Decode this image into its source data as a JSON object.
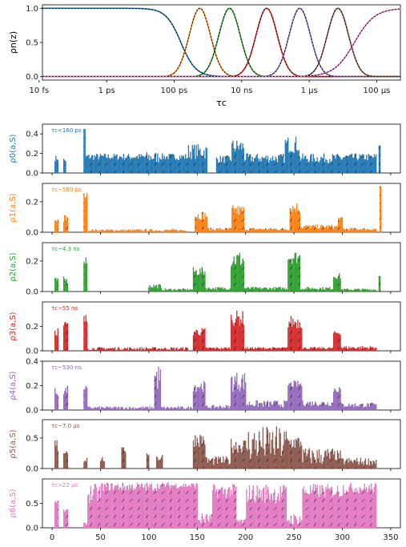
{
  "colors": [
    "#1f77b4",
    "#ff7f0e",
    "#2ca02c",
    "#d62728",
    "#9467bd",
    "#8c564b",
    "#e377c2"
  ],
  "chart_data": [
    {
      "type": "line",
      "ylabel": "ρn(z)",
      "xlabel": "τc",
      "x_scale": "log",
      "xlim_log10": [
        -13.9,
        -3.3
      ],
      "ylim": [
        -0.05,
        1.05
      ],
      "xticks": [
        {
          "log10": -14,
          "label": "10 fs"
        },
        {
          "log10": -12,
          "label": "1 ps"
        },
        {
          "log10": -10,
          "label": "100 ps"
        },
        {
          "log10": -8,
          "label": "10 ns"
        },
        {
          "log10": -6,
          "label": "1 μs"
        },
        {
          "log10": -4,
          "label": "100 μs"
        }
      ],
      "yticks": [
        "0.0",
        "0.5",
        "1.0"
      ],
      "series": [
        {
          "center_log10": -9.8,
          "kind": "falling"
        },
        {
          "center_log10": -9.24,
          "kind": "bump"
        },
        {
          "center_log10": -8.36,
          "kind": "bump"
        },
        {
          "center_log10": -7.26,
          "kind": "bump"
        },
        {
          "center_log10": -6.28,
          "kind": "bump"
        },
        {
          "center_log10": -5.15,
          "kind": "bump"
        },
        {
          "center_log10": -4.66,
          "kind": "rising"
        }
      ],
      "bump_width_log10": 0.72
    },
    {
      "type": "bar",
      "xlim": [
        -10,
        360
      ],
      "xticks": [
        0,
        50,
        100,
        150,
        200,
        250,
        300,
        350
      ],
      "panels": [
        {
          "ylabel": "ρ0(a,S)",
          "annotation": "τc<160 ps",
          "ylim": [
            0,
            0.5
          ],
          "yticks": [
            "0.0",
            "0.2",
            "0.4"
          ],
          "segments": [
            [
              3,
              6,
              0.12,
              0.18
            ],
            [
              12,
              14,
              0.1,
              0.16
            ],
            [
              33,
              34,
              0.45,
              0.45
            ],
            [
              35,
              95,
              0.13,
              0.2
            ],
            [
              96,
              110,
              0.1,
              0.22
            ],
            [
              111,
              140,
              0.13,
              0.2
            ],
            [
              141,
              160,
              0.14,
              0.3
            ],
            [
              170,
              185,
              0.1,
              0.18
            ],
            [
              186,
              198,
              0.18,
              0.35
            ],
            [
              199,
              240,
              0.1,
              0.2
            ],
            [
              241,
              255,
              0.2,
              0.38
            ],
            [
              256,
              300,
              0.1,
              0.2
            ],
            [
              301,
              335,
              0.12,
              0.2
            ],
            [
              338,
              339,
              0.28,
              0.28
            ]
          ]
        },
        {
          "ylabel": "ρ1(a,S)",
          "annotation": "τc~580 ps",
          "ylim": [
            0,
            0.32
          ],
          "yticks": [
            "0.0",
            "0.2"
          ],
          "segments": [
            [
              3,
              6,
              0.06,
              0.1
            ],
            [
              12,
              16,
              0.05,
              0.12
            ],
            [
              33,
              36,
              0.22,
              0.26
            ],
            [
              37,
              140,
              0.005,
              0.02
            ],
            [
              148,
              160,
              0.08,
              0.14
            ],
            [
              161,
              185,
              0.01,
              0.03
            ],
            [
              186,
              198,
              0.1,
              0.18
            ],
            [
              199,
              245,
              0.01,
              0.03
            ],
            [
              246,
              256,
              0.12,
              0.2
            ],
            [
              257,
              295,
              0.02,
              0.05
            ],
            [
              296,
              300,
              0.08,
              0.1
            ],
            [
              301,
              335,
              0.01,
              0.03
            ],
            [
              339,
              340,
              0.3,
              0.3
            ]
          ]
        },
        {
          "ylabel": "ρ2(a,S)",
          "annotation": "τc~4.3 ns",
          "ylim": [
            0,
            0.32
          ],
          "yticks": [
            "0.0",
            "0.2"
          ],
          "segments": [
            [
              3,
              6,
              0.06,
              0.09
            ],
            [
              12,
              16,
              0.05,
              0.1
            ],
            [
              33,
              36,
              0.18,
              0.23
            ],
            [
              100,
              112,
              0.02,
              0.05
            ],
            [
              113,
              145,
              0.005,
              0.02
            ],
            [
              146,
              158,
              0.1,
              0.16
            ],
            [
              159,
              184,
              0.01,
              0.03
            ],
            [
              185,
              198,
              0.15,
              0.27
            ],
            [
              199,
              243,
              0.01,
              0.03
            ],
            [
              244,
              256,
              0.18,
              0.27
            ],
            [
              257,
              290,
              0.01,
              0.03
            ],
            [
              291,
              298,
              0.08,
              0.12
            ],
            [
              299,
              335,
              0.005,
              0.02
            ],
            [
              338,
              339,
              0.1,
              0.1
            ]
          ]
        },
        {
          "ylabel": "ρ3(a,S)",
          "annotation": "τc~55 ns",
          "ylim": [
            0,
            0.4
          ],
          "yticks": [
            "0.0",
            "0.2"
          ],
          "segments": [
            [
              3,
              6,
              0.12,
              0.2
            ],
            [
              12,
              16,
              0.15,
              0.25
            ],
            [
              33,
              36,
              0.2,
              0.3
            ],
            [
              37,
              140,
              0.005,
              0.03
            ],
            [
              146,
              158,
              0.12,
              0.19
            ],
            [
              159,
              184,
              0.01,
              0.03
            ],
            [
              185,
              198,
              0.2,
              0.33
            ],
            [
              199,
              243,
              0.01,
              0.03
            ],
            [
              244,
              258,
              0.18,
              0.29
            ],
            [
              259,
              290,
              0.01,
              0.03
            ],
            [
              291,
              298,
              0.13,
              0.16
            ],
            [
              299,
              335,
              0.01,
              0.04
            ]
          ]
        },
        {
          "ylabel": "ρ4(a,S)",
          "annotation": "τc~530 ns",
          "ylim": [
            0,
            0.4
          ],
          "yticks": [
            "0.0",
            "0.2",
            "0.4"
          ],
          "segments": [
            [
              3,
              6,
              0.1,
              0.18
            ],
            [
              12,
              16,
              0.12,
              0.2
            ],
            [
              33,
              36,
              0.16,
              0.2
            ],
            [
              37,
              105,
              0.005,
              0.03
            ],
            [
              106,
              112,
              0.15,
              0.38
            ],
            [
              113,
              145,
              0.005,
              0.03
            ],
            [
              146,
              158,
              0.15,
              0.24
            ],
            [
              159,
              184,
              0.01,
              0.04
            ],
            [
              185,
              200,
              0.15,
              0.32
            ],
            [
              201,
              243,
              0.02,
              0.08
            ],
            [
              244,
              258,
              0.18,
              0.24
            ],
            [
              259,
              290,
              0.03,
              0.08
            ],
            [
              291,
              298,
              0.14,
              0.2
            ],
            [
              299,
              335,
              0.02,
              0.06
            ]
          ]
        },
        {
          "ylabel": "ρ5(a,S)",
          "annotation": "τc~7.0 μs",
          "ylim": [
            0,
            0.8
          ],
          "yticks": [
            "0.0",
            "0.5"
          ],
          "segments": [
            [
              3,
              6,
              0.25,
              0.5
            ],
            [
              12,
              16,
              0.2,
              0.35
            ],
            [
              33,
              36,
              0.1,
              0.2
            ],
            [
              50,
              54,
              0.1,
              0.2
            ],
            [
              72,
              76,
              0.25,
              0.35
            ],
            [
              98,
              100,
              0.2,
              0.3
            ],
            [
              108,
              114,
              0.1,
              0.25
            ],
            [
              146,
              158,
              0.35,
              0.6
            ],
            [
              159,
              184,
              0.05,
              0.2
            ],
            [
              185,
              200,
              0.25,
              0.5
            ],
            [
              201,
              243,
              0.1,
              0.7
            ],
            [
              244,
              258,
              0.3,
              0.55
            ],
            [
              259,
              290,
              0.05,
              0.35
            ],
            [
              291,
              298,
              0.12,
              0.3
            ],
            [
              299,
              335,
              0.05,
              0.18
            ]
          ]
        },
        {
          "ylabel": "ρ6(a,S)",
          "annotation": "τc>22 μs",
          "ylim": [
            0,
            1.0
          ],
          "yticks": [
            "0.0",
            "0.5"
          ],
          "segments": [
            [
              3,
              6,
              0.5,
              0.55
            ],
            [
              12,
              16,
              0.3,
              0.4
            ],
            [
              33,
              36,
              0.05,
              0.1
            ],
            [
              37,
              50,
              0.5,
              0.9
            ],
            [
              51,
              110,
              0.75,
              0.93
            ],
            [
              111,
              150,
              0.8,
              0.93
            ],
            [
              151,
              165,
              0.05,
              0.3
            ],
            [
              166,
              190,
              0.6,
              0.9
            ],
            [
              191,
              200,
              0.05,
              0.2
            ],
            [
              201,
              242,
              0.5,
              0.9
            ],
            [
              243,
              258,
              0.05,
              0.3
            ],
            [
              259,
              300,
              0.6,
              0.9
            ],
            [
              301,
              335,
              0.7,
              0.92
            ]
          ]
        }
      ]
    }
  ]
}
